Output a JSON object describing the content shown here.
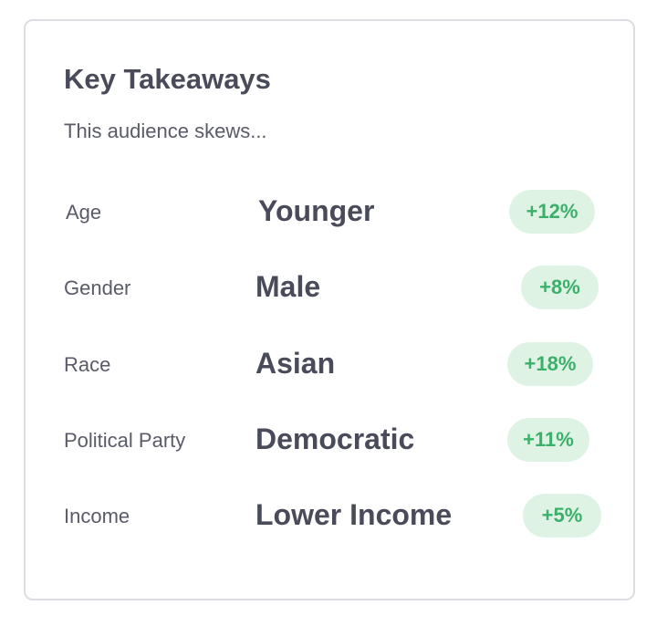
{
  "card": {
    "title": "Key Takeaways",
    "subtitle": "This audience skews..."
  },
  "rows": [
    {
      "label": "Age",
      "value": "Younger",
      "change": "+12%"
    },
    {
      "label": "Gender",
      "value": "Male",
      "change": "+8%"
    },
    {
      "label": "Race",
      "value": "Asian",
      "change": "+18%"
    },
    {
      "label": "Political Party",
      "value": "Democratic",
      "change": "+11%"
    },
    {
      "label": "Income",
      "value": "Lower Income",
      "change": "+5%"
    }
  ],
  "colors": {
    "title_text": "#4a4b5a",
    "label_text": "#5a5b68",
    "badge_background": "#dff3e5",
    "badge_text": "#3bb06a",
    "card_border": "#dcdde3"
  }
}
